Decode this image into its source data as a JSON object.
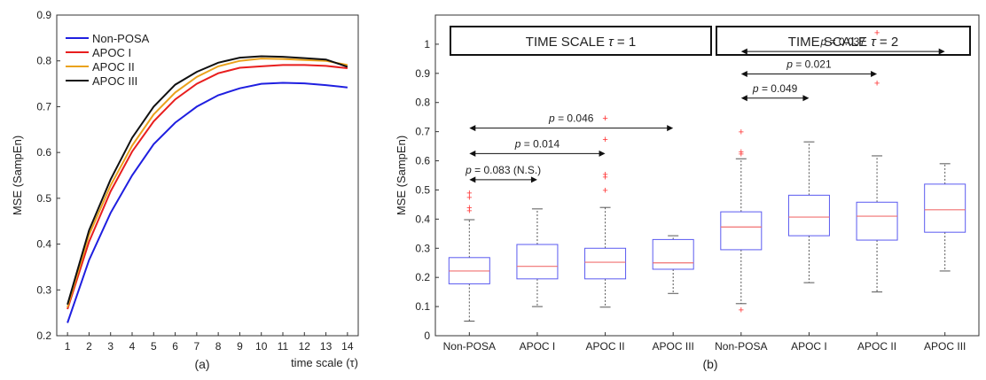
{
  "chart_data": [
    {
      "type": "line",
      "caption": "(a)",
      "xlabel": "time scale (τ)",
      "ylabel": "MSE (SampEn)",
      "xlim": [
        1,
        14
      ],
      "ylim": [
        0.2,
        0.9
      ],
      "x": [
        1,
        2,
        3,
        4,
        5,
        6,
        7,
        8,
        9,
        10,
        11,
        12,
        13,
        14
      ],
      "xticks": [
        "1",
        "2",
        "3",
        "4",
        "5",
        "6",
        "7",
        "8",
        "9",
        "10",
        "11",
        "12",
        "13",
        "14"
      ],
      "yticks": [
        "0.2",
        "0.3",
        "0.4",
        "0.5",
        "0.6",
        "0.7",
        "0.8",
        "0.9"
      ],
      "yticks_values": [
        0.2,
        0.3,
        0.4,
        0.5,
        0.6,
        0.7,
        0.8,
        0.9
      ],
      "legend_position": "top-left",
      "series": [
        {
          "name": "Non-POSA",
          "color": "#1f1fe0",
          "values": [
            0.228,
            0.365,
            0.468,
            0.55,
            0.618,
            0.665,
            0.7,
            0.725,
            0.74,
            0.75,
            0.752,
            0.751,
            0.747,
            0.742
          ]
        },
        {
          "name": "APOC I",
          "color": "#e81e1e",
          "values": [
            0.258,
            0.405,
            0.515,
            0.602,
            0.668,
            0.716,
            0.75,
            0.773,
            0.785,
            0.788,
            0.791,
            0.791,
            0.789,
            0.784
          ]
        },
        {
          "name": "APOC II",
          "color": "#eaa21c",
          "values": [
            0.262,
            0.42,
            0.528,
            0.615,
            0.683,
            0.731,
            0.765,
            0.788,
            0.8,
            0.805,
            0.804,
            0.802,
            0.8,
            0.791
          ]
        },
        {
          "name": "APOC III",
          "color": "#111111",
          "values": [
            0.268,
            0.43,
            0.541,
            0.632,
            0.7,
            0.748,
            0.776,
            0.796,
            0.807,
            0.81,
            0.809,
            0.806,
            0.803,
            0.787
          ]
        }
      ]
    },
    {
      "type": "box",
      "caption": "(b)",
      "ylabel": "MSE (SampEn)",
      "ylim": [
        0,
        1.1
      ],
      "yticks": [
        "0",
        "0.1",
        "0.2",
        "0.3",
        "0.4",
        "0.5",
        "0.6",
        "0.7",
        "0.8",
        "0.9",
        "1"
      ],
      "yticks_values": [
        0,
        0.1,
        0.2,
        0.3,
        0.4,
        0.5,
        0.6,
        0.7,
        0.8,
        0.9,
        1.0
      ],
      "categories": [
        "Non-POSA",
        "APOC I",
        "APOC II",
        "APOC III",
        "Non-POSA",
        "APOC I",
        "APOC II",
        "APOC III"
      ],
      "panels": [
        {
          "title_prefix": "TIME SCALE ",
          "tau": "τ",
          "title_suffix": " = 1"
        },
        {
          "title_prefix": "TIME SCALE ",
          "tau": "τ",
          "title_suffix": " = 2"
        }
      ],
      "boxes": [
        {
          "whisker_low": 0.05,
          "q1": 0.178,
          "median": 0.222,
          "q3": 0.268,
          "whisker_high": 0.398,
          "outliers": [
            0.43,
            0.44,
            0.475,
            0.49
          ]
        },
        {
          "whisker_low": 0.1,
          "q1": 0.195,
          "median": 0.238,
          "q3": 0.313,
          "whisker_high": 0.435,
          "outliers": []
        },
        {
          "whisker_low": 0.098,
          "q1": 0.195,
          "median": 0.252,
          "q3": 0.3,
          "whisker_high": 0.44,
          "outliers": [
            0.5,
            0.545,
            0.555,
            0.675,
            0.748
          ]
        },
        {
          "whisker_low": 0.145,
          "q1": 0.228,
          "median": 0.25,
          "q3": 0.33,
          "whisker_high": 0.343,
          "outliers": []
        },
        {
          "whisker_low": 0.11,
          "q1": 0.295,
          "median": 0.373,
          "q3": 0.425,
          "whisker_high": 0.607,
          "outliers": [
            0.09,
            0.625,
            0.632,
            0.7
          ]
        },
        {
          "whisker_low": 0.182,
          "q1": 0.343,
          "median": 0.407,
          "q3": 0.482,
          "whisker_high": 0.665,
          "outliers": []
        },
        {
          "whisker_low": 0.15,
          "q1": 0.328,
          "median": 0.41,
          "q3": 0.458,
          "whisker_high": 0.617,
          "outliers": [
            0.868,
            1.04
          ]
        },
        {
          "whisker_low": 0.222,
          "q1": 0.355,
          "median": 0.432,
          "q3": 0.52,
          "whisker_high": 0.59,
          "outliers": []
        }
      ],
      "comparisons": [
        {
          "from": 0,
          "to": 1,
          "y": 0.535,
          "label": "p = 0.083 (N.S.)"
        },
        {
          "from": 0,
          "to": 2,
          "y": 0.625,
          "label": "p = 0.014"
        },
        {
          "from": 0,
          "to": 3,
          "y": 0.712,
          "label": "p = 0.046"
        },
        {
          "from": 4,
          "to": 5,
          "y": 0.815,
          "label": "p = 0.049"
        },
        {
          "from": 4,
          "to": 6,
          "y": 0.898,
          "label": "p = 0.021"
        },
        {
          "from": 4,
          "to": 7,
          "y": 0.975,
          "label": "p = 0.037"
        }
      ],
      "colors": {
        "box": "#5a5af0",
        "median": "#f07070",
        "whisker": "#555555",
        "outlier": "#ff3030"
      }
    }
  ]
}
